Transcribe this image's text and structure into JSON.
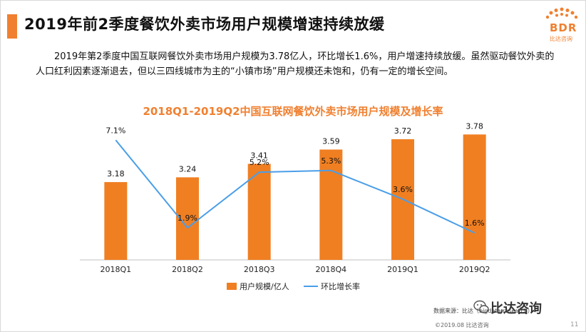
{
  "header": {
    "title": "2019年前2季度餐饮外卖市场用户规模增速持续放缓",
    "logo_text": "BDR",
    "logo_sub": "比达咨询"
  },
  "intro": "2019年第2季度中国互联网餐饮外卖市场用户规模为3.78亿人，环比增长1.6%，用户增速持续放缓。虽然驱动餐饮外卖的人口红利因素逐渐退去，但以三四线城市为主的“小镇市场”用户规模还未饱和，仍有一定的增长空间。",
  "footer": {
    "source": "数据来源：比达（bigdata-research）",
    "watermark": "比达咨询",
    "copyright": "©2019.08 比达咨询",
    "page": "11"
  },
  "colors": {
    "bar": "#f07f22",
    "line": "#4a9ee8",
    "accent": "#f08030"
  },
  "chart_data": {
    "type": "bar",
    "title": "2018Q1-2019Q2中国互联网餐饮外卖市场用户规模及增长率",
    "categories": [
      "2018Q1",
      "2018Q2",
      "2018Q3",
      "2018Q4",
      "2019Q1",
      "2019Q2"
    ],
    "series": [
      {
        "name": "用户规模/亿人",
        "type": "bar",
        "values": [
          3.18,
          3.24,
          3.41,
          3.59,
          3.72,
          3.78
        ],
        "labels": [
          "3.18",
          "3.24",
          "3.41",
          "3.59",
          "3.72",
          "3.78"
        ]
      },
      {
        "name": "环比增长率",
        "type": "line",
        "values": [
          7.1,
          1.9,
          5.2,
          5.3,
          3.6,
          1.6
        ],
        "labels": [
          "7.1%",
          "1.9%",
          "5.2%",
          "5.3%",
          "3.6%",
          "1.6%"
        ]
      }
    ],
    "bar_ylim": [
      2.2,
      3.9
    ],
    "line_ylim": [
      0,
      8
    ],
    "legend_position": "bottom-center"
  }
}
